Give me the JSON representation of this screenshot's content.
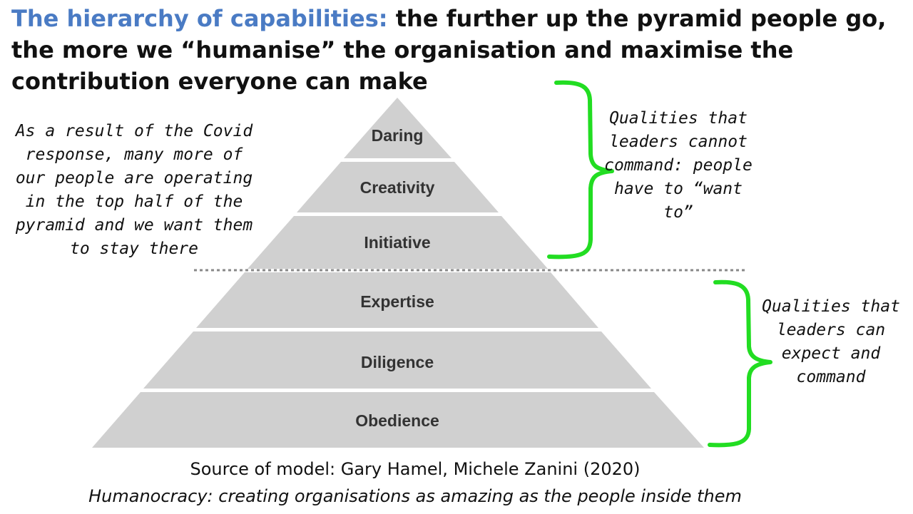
{
  "title": {
    "lead": "The hierarchy of capabilities:",
    "rest": "the further up the pyramid people go, the more we “humanise” the organisation and maximise the contribution everyone can make"
  },
  "pyramid": {
    "tiers": [
      "Daring",
      "Creativity",
      "Initiative",
      "Expertise",
      "Diligence",
      "Obedience"
    ]
  },
  "notes": {
    "left": "As a result of the Covid response, many more of our people are operating in the top half of the pyramid and we want them to stay there",
    "upper_bracket": "Qualities that leaders cannot command: people have to “want to”",
    "lower_bracket": "Qualities that leaders can expect and command"
  },
  "source": {
    "line": "Source of model: Gary Hamel, Michele Zanini (2020)",
    "book": "Humanocracy: creating organisations as amazing as the people inside them"
  },
  "colors": {
    "title_lead": "#4a7bc4",
    "tier_fill": "#d0d0d0",
    "bracket": "#22dd22",
    "divider": "#888888"
  }
}
